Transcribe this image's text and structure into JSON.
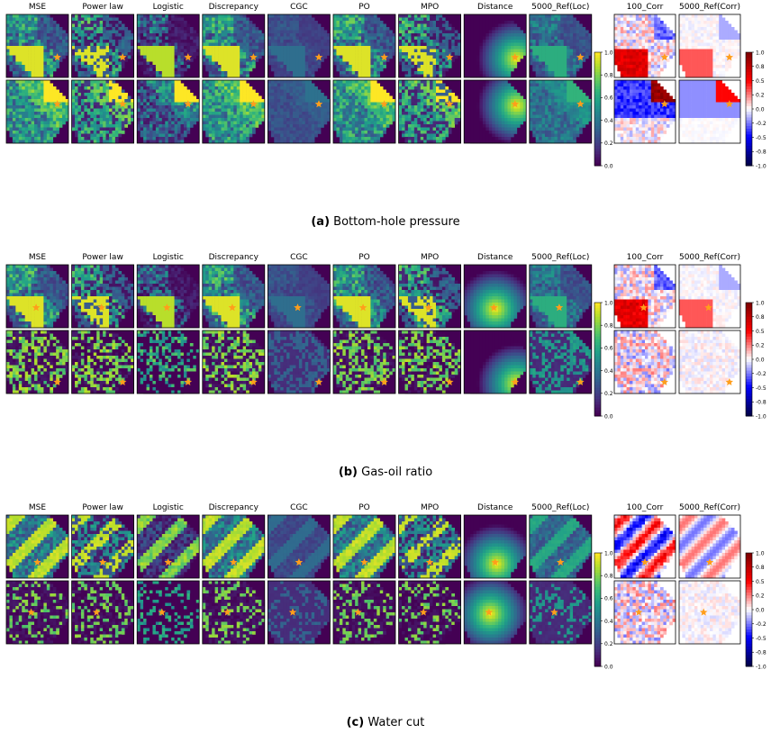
{
  "figure": {
    "loc_headers": [
      "MSE",
      "Power law",
      "Logistic",
      "Discrepancy",
      "CGC",
      "PO",
      "MPO",
      "Distance",
      "5000_Ref(Loc)"
    ],
    "corr_headers": [
      "100_Corr",
      "5000_Ref(Corr)"
    ],
    "colors": {
      "viridis": [
        "#440154",
        "#482878",
        "#3e4989",
        "#31688e",
        "#26828e",
        "#1f9e89",
        "#35b779",
        "#6ece58",
        "#b5de2b",
        "#fde725"
      ],
      "seismic_low": "#00004c",
      "seismic_mid": "#ffffff",
      "seismic_high": "#7f0000",
      "star": "#ff9e1b",
      "panel_border": "#000000"
    }
  },
  "chart_data": [
    {
      "type": "heatmap",
      "panel_label": "(a)",
      "caption": "Bottom-hole pressure",
      "rows": 2,
      "loc_colorbar": {
        "ticks": [
          "0.0",
          "0.2",
          "0.4",
          "0.6",
          "0.8",
          "1.0"
        ],
        "range": [
          0,
          1
        ],
        "colormap": "viridis"
      },
      "corr_colorbar": {
        "ticks": [
          "-1.0",
          "-0.8",
          "-0.5",
          "-0.2",
          "0.0",
          "0.2",
          "0.5",
          "0.8",
          "1.0"
        ],
        "range": [
          -1,
          1
        ],
        "colormap": "seismic"
      },
      "well_location": [
        [
          0.82,
          0.68
        ],
        [
          0.82,
          0.38
        ]
      ],
      "pattern": [
        "band_lower_left",
        "upper_right_block"
      ]
    },
    {
      "type": "heatmap",
      "panel_label": "(b)",
      "caption": "Gas-oil ratio",
      "rows": 2,
      "loc_colorbar": {
        "ticks": [
          "0.0",
          "0.2",
          "0.4",
          "0.6",
          "0.8",
          "1.0"
        ],
        "range": [
          0,
          1
        ],
        "colormap": "viridis"
      },
      "corr_colorbar": {
        "ticks": [
          "-1.0",
          "-0.8",
          "-0.5",
          "-0.2",
          "0.0",
          "0.2",
          "0.5",
          "0.8",
          "1.0"
        ],
        "range": [
          -1,
          1
        ],
        "colormap": "seismic"
      },
      "well_location": [
        [
          0.48,
          0.68
        ],
        [
          0.82,
          0.82
        ]
      ],
      "pattern": [
        "band_lower_left",
        "scattered"
      ]
    },
    {
      "type": "heatmap",
      "panel_label": "(c)",
      "caption": "Water cut",
      "rows": 2,
      "loc_colorbar": {
        "ticks": [
          "0.0",
          "0.2",
          "0.4",
          "0.6",
          "0.8",
          "1.0"
        ],
        "range": [
          0,
          1
        ],
        "colormap": "viridis"
      },
      "corr_colorbar": {
        "ticks": [
          "-1.0",
          "-0.8",
          "-0.5",
          "-0.2",
          "0.0",
          "0.2",
          "0.5",
          "0.8",
          "1.0"
        ],
        "range": [
          -1,
          1
        ],
        "colormap": "seismic"
      },
      "well_location": [
        [
          0.5,
          0.75
        ],
        [
          0.4,
          0.5
        ]
      ],
      "pattern": [
        "diagonal_bands",
        "scattered_sparse"
      ]
    }
  ]
}
